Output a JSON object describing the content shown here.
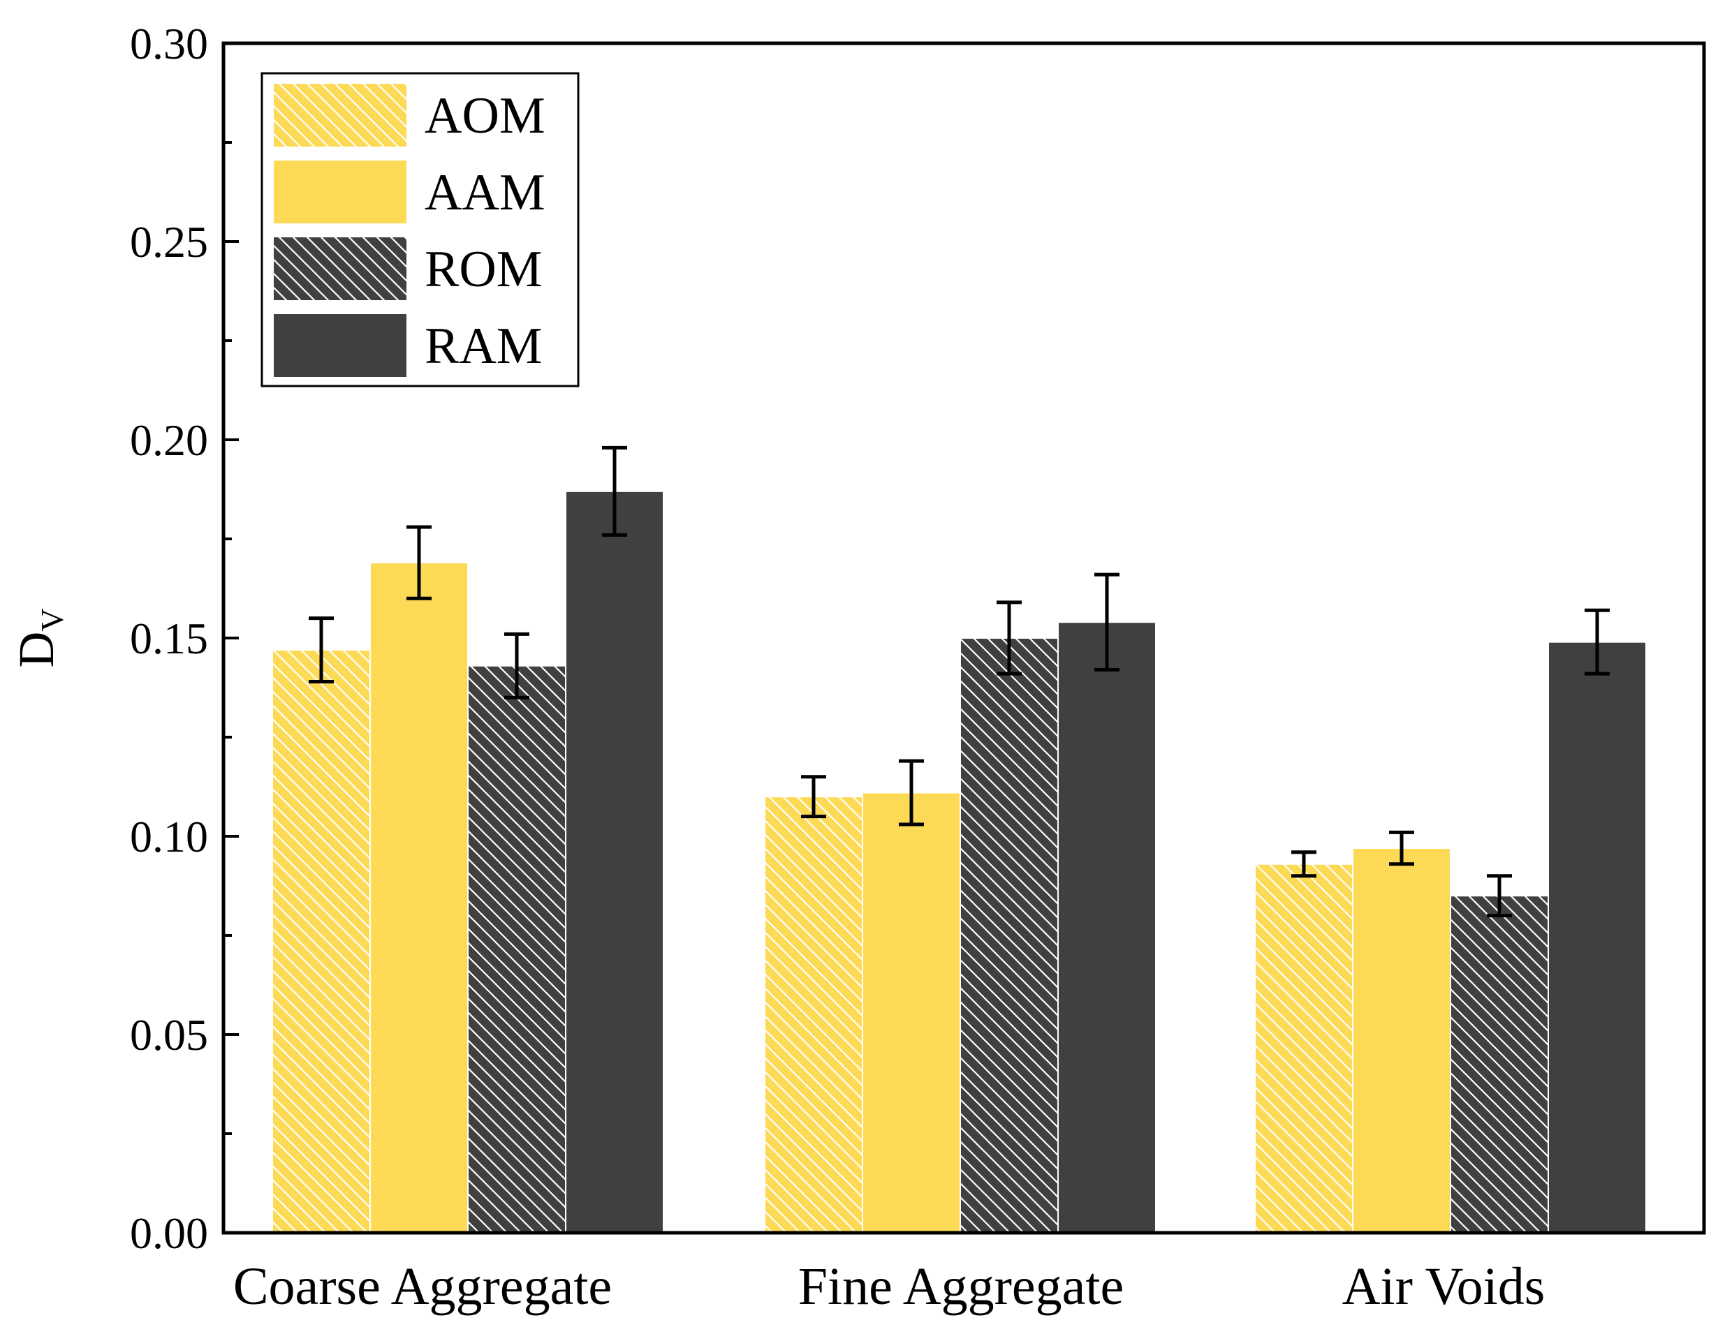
{
  "colors": {
    "yellow": "#FDDA55",
    "dark": "#404040",
    "axis": "#000000",
    "hatch_on_yellow": "#ffffff",
    "hatch_on_dark": "#ffffff"
  },
  "chart_data": {
    "type": "bar",
    "ylabel_main": "D",
    "ylabel_sub": "V",
    "xlabel": "",
    "ylim": [
      0.0,
      0.3
    ],
    "y_ticks": [
      "0.00",
      "0.05",
      "0.10",
      "0.15",
      "0.20",
      "0.25",
      "0.30"
    ],
    "y_tick_values": [
      0.0,
      0.05,
      0.1,
      0.15,
      0.2,
      0.25,
      0.3
    ],
    "y_minor_step": 0.025,
    "grid": false,
    "legend_position": "top-left",
    "categories": [
      "Coarse Aggregate",
      "Fine Aggregate",
      "Air Voids"
    ],
    "series": [
      {
        "name": "AOM",
        "color": "yellow",
        "hatched": true,
        "values": [
          0.147,
          0.11,
          0.093
        ],
        "errors": [
          0.008,
          0.005,
          0.003
        ]
      },
      {
        "name": "AAM",
        "color": "yellow",
        "hatched": false,
        "values": [
          0.169,
          0.111,
          0.097
        ],
        "errors": [
          0.009,
          0.008,
          0.004
        ]
      },
      {
        "name": "ROM",
        "color": "dark",
        "hatched": true,
        "values": [
          0.143,
          0.15,
          0.085
        ],
        "errors": [
          0.008,
          0.009,
          0.005
        ]
      },
      {
        "name": "RAM",
        "color": "dark",
        "hatched": false,
        "values": [
          0.187,
          0.154,
          0.149
        ],
        "errors": [
          0.011,
          0.012,
          0.008
        ]
      }
    ]
  }
}
